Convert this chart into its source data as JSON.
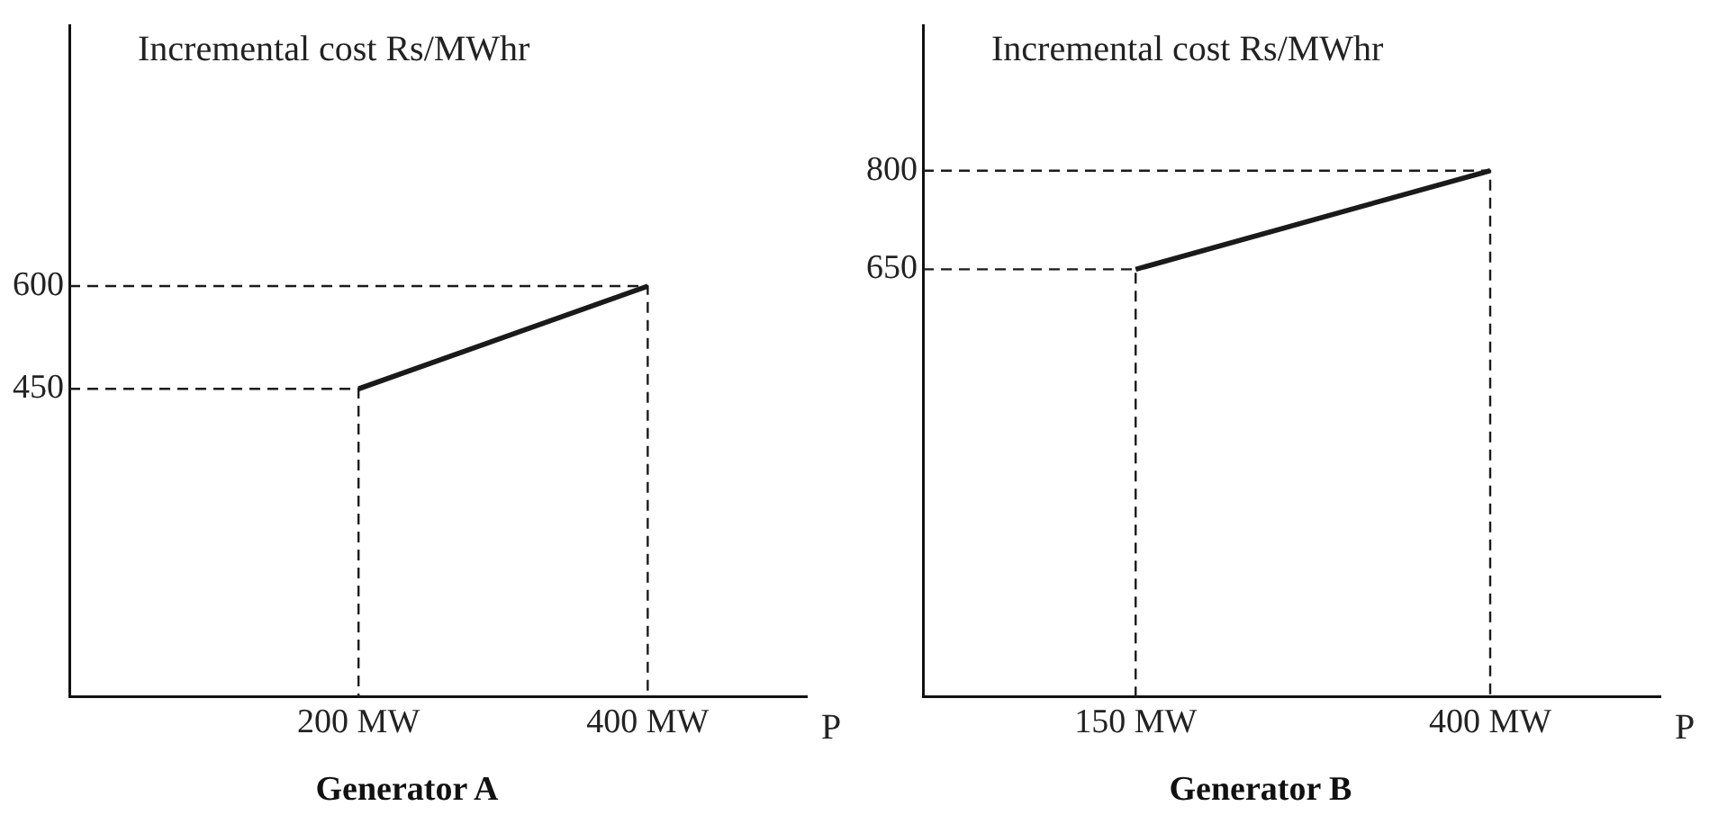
{
  "chart_data": [
    {
      "type": "line",
      "title": "Generator A",
      "xlabel": "P",
      "ylabel": "Incremental cost Rs/MWhr",
      "xlim": [
        0,
        510
      ],
      "ylim": [
        0,
        980
      ],
      "xticks": [
        {
          "value": 200,
          "label": "200 MW"
        },
        {
          "value": 400,
          "label": "400 MW"
        }
      ],
      "yticks": [
        450,
        600
      ],
      "grid": false,
      "legend": false,
      "series": [
        {
          "color": "#1a1a1a",
          "x": [
            200,
            400
          ],
          "values": [
            450,
            600
          ]
        },
        {
          "color": "#1a1a1a",
          "line_style": "dashed",
          "x": [
            0,
            200,
            200
          ],
          "values": [
            450,
            450,
            0
          ]
        },
        {
          "color": "#1a1a1a",
          "line_style": "dashed",
          "x": [
            0,
            400,
            400
          ],
          "values": [
            600,
            600,
            0
          ]
        }
      ]
    },
    {
      "type": "line",
      "title": "Generator B",
      "xlabel": "P",
      "ylabel": "Incremental cost Rs/MWhr",
      "xlim": [
        0,
        520
      ],
      "ylim": [
        0,
        1020
      ],
      "xticks": [
        {
          "value": 150,
          "label": "150 MW"
        },
        {
          "value": 400,
          "label": "400 MW"
        }
      ],
      "yticks": [
        650,
        800
      ],
      "grid": false,
      "legend": false,
      "series": [
        {
          "color": "#1a1a1a",
          "x": [
            150,
            400
          ],
          "values": [
            650,
            800
          ]
        },
        {
          "color": "#1a1a1a",
          "line_style": "dashed",
          "x": [
            0,
            150,
            150
          ],
          "values": [
            650,
            650,
            0
          ]
        },
        {
          "color": "#1a1a1a",
          "line_style": "dashed",
          "x": [
            0,
            400,
            400
          ],
          "values": [
            800,
            800,
            0
          ]
        }
      ]
    }
  ]
}
